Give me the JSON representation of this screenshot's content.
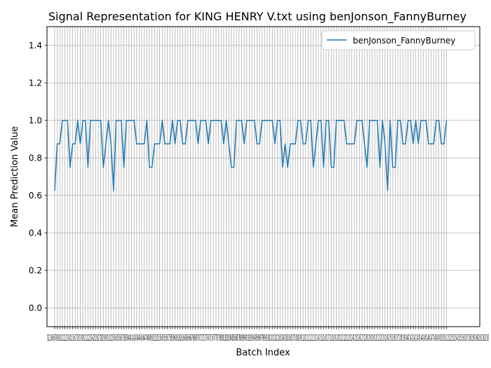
{
  "chart_data": {
    "type": "line",
    "title": "Signal Representation for KING HENRY V.txt using benJonson_FannyBurney",
    "xlabel": "Batch Index",
    "ylabel": "Mean Prediction Value",
    "ylim": [
      -0.1,
      1.5
    ],
    "yticks": [
      "0.0",
      "0.2",
      "0.4",
      "0.6",
      "0.8",
      "1.0",
      "1.2",
      "1.4"
    ],
    "xlim": [
      -3,
      166
    ],
    "grid": true,
    "legend_position": "upper right",
    "x_tick_text": "0123456789101112131415161718192021222324252627282930313233343536373839404142434445464748495051525354555657585960616263646566676869707172737475767778798081828384858687888990919293949596979899100101102103104105106107108109110111112113114115116117118119120121122123124125126127128129130131132133134135136137138139140141142143144145146147148149150151152153154155156157158159160161162163",
    "series": [
      {
        "name": "benJonson_FannyBurney",
        "color": "#1f77b4",
        "values": [
          0.625,
          0.875,
          0.875,
          1.0,
          1.0,
          1.0,
          0.75,
          0.875,
          0.875,
          1.0,
          0.875,
          1.0,
          1.0,
          0.75,
          1.0,
          1.0,
          1.0,
          1.0,
          1.0,
          0.75,
          0.875,
          1.0,
          0.875,
          0.625,
          1.0,
          1.0,
          1.0,
          0.75,
          1.0,
          1.0,
          1.0,
          1.0,
          0.875,
          0.875,
          0.875,
          0.875,
          1.0,
          0.75,
          0.75,
          0.875,
          0.875,
          0.875,
          1.0,
          0.875,
          0.875,
          0.875,
          1.0,
          0.875,
          1.0,
          1.0,
          0.875,
          0.875,
          1.0,
          1.0,
          1.0,
          1.0,
          0.875,
          1.0,
          1.0,
          1.0,
          0.875,
          1.0,
          1.0,
          1.0,
          1.0,
          1.0,
          0.875,
          1.0,
          0.875,
          0.75,
          0.75,
          1.0,
          1.0,
          1.0,
          0.875,
          1.0,
          1.0,
          1.0,
          1.0,
          0.875,
          0.875,
          1.0,
          1.0,
          1.0,
          1.0,
          1.0,
          0.875,
          1.0,
          1.0,
          0.75,
          0.875,
          0.75,
          0.875,
          0.875,
          0.875,
          1.0,
          1.0,
          0.875,
          0.875,
          1.0,
          1.0,
          0.75,
          0.875,
          1.0,
          1.0,
          0.75,
          1.0,
          1.0,
          0.75,
          0.75,
          1.0,
          1.0,
          1.0,
          1.0,
          0.875,
          0.875,
          0.875,
          0.875,
          1.0,
          1.0,
          1.0,
          0.875,
          0.75,
          1.0,
          1.0,
          1.0,
          1.0,
          0.75,
          1.0,
          0.875,
          0.625,
          1.0,
          0.75,
          0.75,
          1.0,
          1.0,
          0.875,
          0.875,
          1.0,
          1.0,
          0.875,
          1.0,
          0.875,
          1.0,
          1.0,
          1.0,
          0.875,
          0.875,
          0.875,
          1.0,
          1.0,
          0.875,
          0.875,
          1.0
        ]
      }
    ]
  }
}
